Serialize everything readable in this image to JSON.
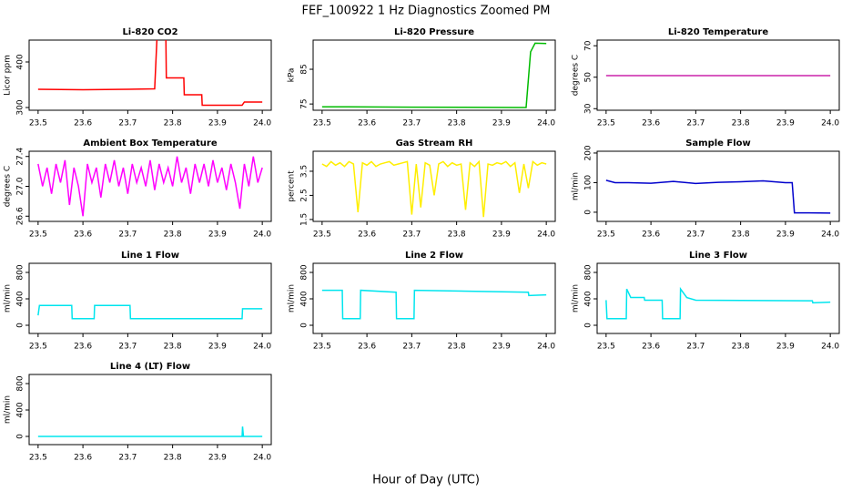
{
  "title": "FEF_100922  1 Hz Diagnostics Zoomed PM",
  "xlabel": "Hour of Day (UTC)",
  "chart_data": [
    {
      "type": "line",
      "title": "Li-820 CO2",
      "ylabel": "Licor ppm",
      "color": "#ff0000",
      "xlim": [
        23.48,
        24.02
      ],
      "xticks": [
        23.5,
        23.6,
        23.7,
        23.8,
        23.9,
        {
          "value": 24,
          "label": "24.0"
        }
      ],
      "ylim": [
        294,
        448
      ],
      "yticks": [
        300,
        400
      ],
      "x": [
        23.5,
        23.6,
        23.7,
        23.76,
        23.765,
        23.785,
        23.786,
        23.825,
        23.826,
        23.865,
        23.866,
        23.955,
        23.96,
        24.0
      ],
      "values": [
        340,
        339,
        340,
        341,
        450,
        450,
        365,
        365,
        328,
        328,
        305,
        305,
        312,
        312
      ]
    },
    {
      "type": "line",
      "title": "Li-820 Pressure",
      "ylabel": "kPa",
      "color": "#00bb00",
      "xlim": [
        23.48,
        24.02
      ],
      "xticks": [
        23.5,
        23.6,
        23.7,
        23.8,
        23.9,
        {
          "value": 24,
          "label": "24.0"
        }
      ],
      "ylim": [
        73.2,
        93.4
      ],
      "yticks": [
        75,
        85
      ],
      "x": [
        23.5,
        23.7,
        23.94,
        23.955,
        23.965,
        23.975,
        24.0
      ],
      "values": [
        74.2,
        74.1,
        74.0,
        74.0,
        90,
        92.5,
        92.4
      ]
    },
    {
      "type": "line",
      "title": "Li-820 Temperature",
      "ylabel": "degrees C",
      "color": "#cc22aa",
      "xlim": [
        23.48,
        24.02
      ],
      "xticks": [
        23.5,
        23.6,
        23.7,
        23.8,
        23.9,
        {
          "value": 24,
          "label": "24.0"
        }
      ],
      "ylim": [
        29.0,
        73.6
      ],
      "yticks": [
        30,
        50,
        70
      ],
      "x": [
        23.5,
        24.0
      ],
      "values": [
        51,
        51
      ]
    },
    {
      "type": "line",
      "title": "Ambient Box Temperature",
      "ylabel": "degrees C",
      "color": "#ff00ff",
      "xlim": [
        23.48,
        24.02
      ],
      "xticks": [
        23.5,
        23.6,
        23.7,
        23.8,
        23.9,
        {
          "value": 24,
          "label": "24.0"
        }
      ],
      "ylim": [
        26.53,
        27.47
      ],
      "yticks": [
        26.6,
        {
          "value": 27,
          "label": "27.0"
        },
        27.4
      ],
      "x": [
        23.5,
        23.51,
        23.52,
        23.53,
        23.54,
        23.55,
        23.56,
        23.57,
        23.58,
        23.59,
        23.6,
        23.61,
        23.62,
        23.63,
        23.64,
        23.65,
        23.66,
        23.67,
        23.68,
        23.69,
        23.7,
        23.71,
        23.72,
        23.73,
        23.74,
        23.75,
        23.76,
        23.77,
        23.78,
        23.79,
        23.8,
        23.81,
        23.82,
        23.83,
        23.84,
        23.85,
        23.86,
        23.87,
        23.88,
        23.89,
        23.9,
        23.91,
        23.92,
        23.93,
        23.94,
        23.95,
        23.96,
        23.97,
        23.98,
        23.99,
        24.0
      ],
      "values": [
        27.3,
        27.0,
        27.25,
        26.9,
        27.3,
        27.05,
        27.35,
        26.75,
        27.25,
        27.0,
        26.6,
        27.3,
        27.05,
        27.25,
        26.85,
        27.3,
        27.05,
        27.35,
        27.0,
        27.25,
        26.9,
        27.3,
        27.05,
        27.25,
        27.0,
        27.35,
        26.95,
        27.3,
        27.05,
        27.25,
        27.0,
        27.4,
        27.05,
        27.25,
        26.9,
        27.3,
        27.05,
        27.3,
        27.0,
        27.35,
        27.05,
        27.25,
        26.95,
        27.3,
        27.05,
        26.7,
        27.3,
        27.0,
        27.4,
        27.05,
        27.25
      ]
    },
    {
      "type": "line",
      "title": "Gas Stream RH",
      "ylabel": "percent",
      "color": "#ffee00",
      "xlim": [
        23.48,
        24.02
      ],
      "xticks": [
        23.5,
        23.6,
        23.7,
        23.8,
        23.9,
        {
          "value": 24,
          "label": "24.0"
        }
      ],
      "ylim": [
        1.42,
        4.33
      ],
      "yticks": [
        1.5,
        2.5,
        3.5
      ],
      "x": [
        23.5,
        23.51,
        23.52,
        23.53,
        23.54,
        23.55,
        23.56,
        23.57,
        23.58,
        23.59,
        23.6,
        23.61,
        23.62,
        23.63,
        23.64,
        23.65,
        23.66,
        23.67,
        23.68,
        23.69,
        23.7,
        23.71,
        23.72,
        23.73,
        23.74,
        23.75,
        23.76,
        23.77,
        23.78,
        23.79,
        23.8,
        23.81,
        23.82,
        23.83,
        23.84,
        23.85,
        23.86,
        23.87,
        23.88,
        23.89,
        23.9,
        23.91,
        23.92,
        23.93,
        23.94,
        23.95,
        23.96,
        23.97,
        23.98,
        23.99,
        24.0
      ],
      "values": [
        3.8,
        3.7,
        3.9,
        3.75,
        3.85,
        3.7,
        3.9,
        3.8,
        1.8,
        3.85,
        3.75,
        3.9,
        3.7,
        3.8,
        3.85,
        3.9,
        3.75,
        3.8,
        3.85,
        3.9,
        1.7,
        3.8,
        2.0,
        3.85,
        3.75,
        2.5,
        3.8,
        3.9,
        3.7,
        3.85,
        3.75,
        3.8,
        1.9,
        3.85,
        3.7,
        3.9,
        1.6,
        3.8,
        3.75,
        3.85,
        3.8,
        3.9,
        3.7,
        3.85,
        2.6,
        3.8,
        2.8,
        3.9,
        3.75,
        3.85,
        3.8
      ]
    },
    {
      "type": "line",
      "title": "Sample Flow",
      "ylabel": "ml/min",
      "color": "#0000cc",
      "xlim": [
        23.48,
        24.02
      ],
      "xticks": [
        23.5,
        23.6,
        23.7,
        23.8,
        23.9,
        {
          "value": 24,
          "label": "24.0"
        }
      ],
      "ylim": [
        -31,
        206
      ],
      "yticks": [
        0,
        100,
        200
      ],
      "x": [
        23.5,
        23.52,
        23.55,
        23.6,
        23.65,
        23.7,
        23.75,
        23.8,
        23.85,
        23.9,
        23.915,
        23.92,
        23.95,
        24.0
      ],
      "values": [
        108,
        100,
        100,
        98,
        104,
        97,
        101,
        103,
        106,
        100,
        100,
        -2,
        -2,
        -3
      ]
    },
    {
      "type": "line",
      "title": "Line 1 Flow",
      "ylabel": "ml/min",
      "color": "#00e5ee",
      "xlim": [
        23.48,
        24.02
      ],
      "xticks": [
        23.5,
        23.6,
        23.7,
        23.8,
        23.9,
        {
          "value": 24,
          "label": "24.0"
        }
      ],
      "ylim": [
        -124,
        938
      ],
      "yticks": [
        0,
        400,
        800
      ],
      "x": [
        23.5,
        23.503,
        23.575,
        23.576,
        23.625,
        23.626,
        23.705,
        23.706,
        23.955,
        23.956,
        24.0
      ],
      "values": [
        150,
        300,
        300,
        100,
        100,
        300,
        300,
        100,
        100,
        250,
        250
      ]
    },
    {
      "type": "line",
      "title": "Line 2 Flow",
      "ylabel": "ml/min",
      "color": "#00e5ee",
      "xlim": [
        23.48,
        24.02
      ],
      "xticks": [
        23.5,
        23.6,
        23.7,
        23.8,
        23.9,
        {
          "value": 24,
          "label": "24.0"
        }
      ],
      "ylim": [
        -124,
        938
      ],
      "yticks": [
        0,
        400,
        800
      ],
      "x": [
        23.5,
        23.545,
        23.546,
        23.585,
        23.586,
        23.665,
        23.666,
        23.705,
        23.706,
        23.96,
        23.961,
        24.0
      ],
      "values": [
        530,
        530,
        100,
        100,
        530,
        500,
        100,
        100,
        530,
        500,
        450,
        460
      ]
    },
    {
      "type": "line",
      "title": "Line 3 Flow",
      "ylabel": "ml/min",
      "color": "#00e5ee",
      "xlim": [
        23.48,
        24.02
      ],
      "xticks": [
        23.5,
        23.6,
        23.7,
        23.8,
        23.9,
        {
          "value": 24,
          "label": "24.0"
        }
      ],
      "ylim": [
        -124,
        938
      ],
      "yticks": [
        0,
        400,
        800
      ],
      "x": [
        23.5,
        23.502,
        23.545,
        23.546,
        23.555,
        23.585,
        23.586,
        23.625,
        23.626,
        23.665,
        23.666,
        23.68,
        23.7,
        23.96,
        23.961,
        24.0
      ],
      "values": [
        380,
        100,
        100,
        550,
        420,
        420,
        380,
        380,
        100,
        100,
        550,
        420,
        380,
        370,
        340,
        350
      ]
    },
    {
      "type": "line",
      "title": "Line 4 (LT) Flow",
      "ylabel": "ml/min",
      "color": "#00e5ee",
      "xlim": [
        23.48,
        24.02
      ],
      "xticks": [
        23.5,
        23.6,
        23.7,
        23.8,
        23.9,
        {
          "value": 24,
          "label": "24.0"
        }
      ],
      "ylim": [
        -124,
        938
      ],
      "yticks": [
        0,
        400,
        800
      ],
      "x": [
        23.5,
        23.955,
        23.956,
        23.958,
        24.0
      ],
      "values": [
        0,
        0,
        150,
        0,
        0
      ]
    }
  ]
}
